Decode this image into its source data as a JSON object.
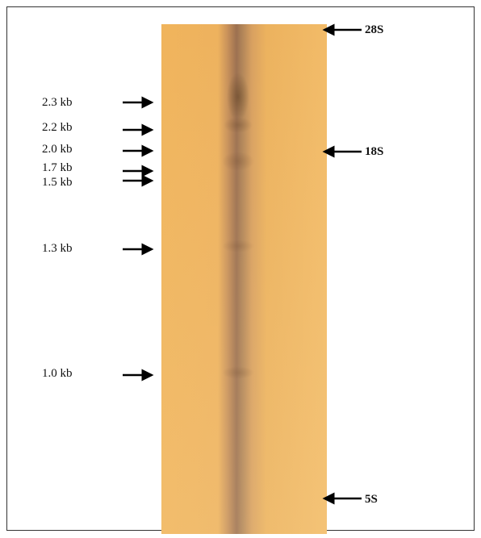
{
  "size_markers": [
    "2.3 kb",
    "2.2 kb",
    "2.0 kb",
    "1.7 kb",
    "1.5 kb",
    "1.3 kb",
    "1.0 kb"
  ],
  "rrna_markers": [
    "28S",
    "18S",
    "5S"
  ]
}
